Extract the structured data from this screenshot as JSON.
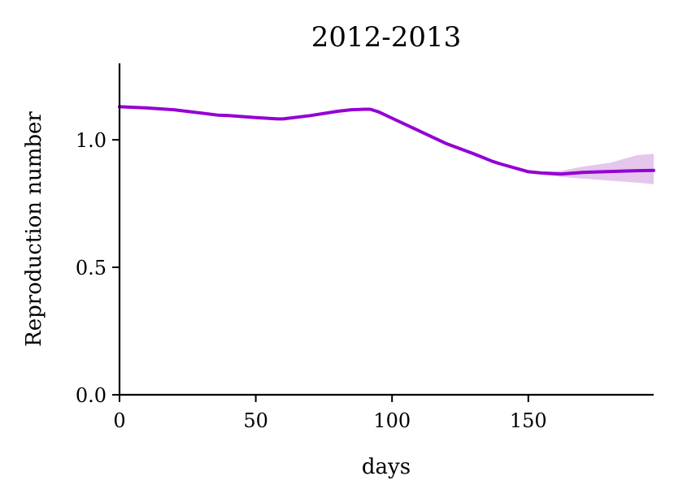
{
  "chart_data": {
    "type": "line",
    "title": "2012-2013",
    "xlabel": "days",
    "ylabel": "Reproduction number",
    "xlim": [
      0,
      196
    ],
    "ylim": [
      0,
      1.3
    ],
    "xticks": [
      0,
      50,
      100,
      150
    ],
    "xtick_labels": [
      "0",
      "50",
      "100",
      "150"
    ],
    "yticks": [
      0.0,
      0.5,
      1.0
    ],
    "ytick_labels": [
      "0.0",
      "0.5",
      "1.0"
    ],
    "grid": false,
    "line_color": "#9400d3",
    "band_color": "#e5c6ec",
    "series": [
      {
        "x": [
          0,
          10,
          20,
          30,
          36,
          40,
          50,
          58,
          60,
          70,
          80,
          85,
          90,
          92,
          95,
          100,
          110,
          120,
          130,
          137,
          140,
          150,
          155,
          162,
          170,
          180,
          190,
          196
        ],
        "y": [
          1.13,
          1.125,
          1.118,
          1.105,
          1.097,
          1.095,
          1.087,
          1.082,
          1.082,
          1.095,
          1.112,
          1.118,
          1.12,
          1.12,
          1.11,
          1.085,
          1.035,
          0.985,
          0.945,
          0.915,
          0.905,
          0.875,
          0.87,
          0.866,
          0.872,
          0.876,
          0.879,
          0.88
        ],
        "lower": [
          1.127,
          1.122,
          1.115,
          1.102,
          1.094,
          1.092,
          1.084,
          1.079,
          1.079,
          1.092,
          1.108,
          1.114,
          1.116,
          1.115,
          1.105,
          1.08,
          1.03,
          0.98,
          0.94,
          0.91,
          0.9,
          0.87,
          0.864,
          0.855,
          0.848,
          0.84,
          0.832,
          0.826
        ],
        "upper": [
          1.133,
          1.128,
          1.121,
          1.108,
          1.1,
          1.098,
          1.09,
          1.085,
          1.085,
          1.1,
          1.117,
          1.123,
          1.124,
          1.125,
          1.115,
          1.09,
          1.04,
          0.99,
          0.95,
          0.92,
          0.91,
          0.88,
          0.876,
          0.878,
          0.895,
          0.91,
          0.94,
          0.945
        ]
      }
    ]
  }
}
